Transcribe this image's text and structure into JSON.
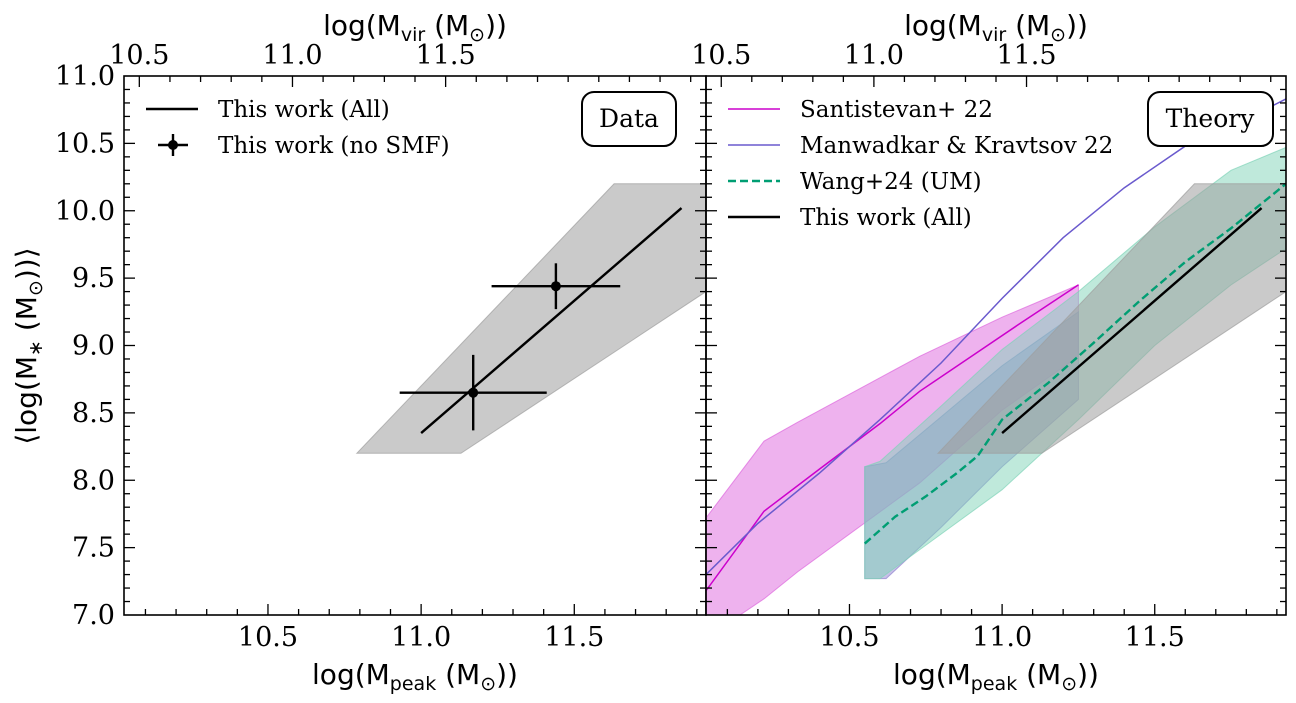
{
  "colors": {
    "black": "#000000",
    "gray_band": "#9e9e9e",
    "santistevan": "#cc00cc",
    "santistevan_band": "#dd66dd",
    "manwadkar": "#6a5acd",
    "manwadkar_band": "#8f82cf",
    "wang": "#009e73",
    "wang_band": "#7fd3b8"
  },
  "chart_data": [
    {
      "id": "left",
      "type": "line",
      "panel_label": "Data",
      "xlabel": "log(M_peak (M_sun))",
      "ylabel": "⟨log(M_* (M_sun))⟩",
      "top_xlabel": "log(M_vir (M_sun))",
      "xlim": [
        10.03,
        11.93
      ],
      "ylim": [
        7.0,
        11.0
      ],
      "x_ticks": [
        "10.5",
        "11.0",
        "11.5"
      ],
      "top_ticks": [
        "10.5",
        "11.0",
        "11.5"
      ],
      "y_ticks": [
        "7.0",
        "7.5",
        "8.0",
        "8.5",
        "9.0",
        "9.5",
        "10.0",
        "10.5",
        "11.0"
      ],
      "bands": [
        {
          "name": "This work (All) range",
          "color_key": "gray_band",
          "upper": [
            [
              10.79,
              8.2
            ],
            [
              11.63,
              10.2
            ],
            [
              11.93,
              10.2
            ]
          ],
          "lower": [
            [
              11.13,
              8.2
            ],
            [
              11.93,
              9.4
            ]
          ]
        }
      ],
      "series": [
        {
          "name": "This work (All)",
          "style": "solid",
          "color_key": "black",
          "points": [
            [
              11.0,
              8.35
            ],
            [
              11.85,
              10.02
            ]
          ]
        }
      ],
      "errorbars": [
        {
          "name": "This work (no SMF)",
          "x": 11.17,
          "y": 8.65,
          "xerr": [
            0.24,
            0.24
          ],
          "yerr": [
            0.28,
            0.28
          ]
        },
        {
          "name": "This work (no SMF)",
          "x": 11.44,
          "y": 9.44,
          "xerr": [
            0.21,
            0.21
          ],
          "yerr": [
            0.17,
            0.17
          ]
        }
      ],
      "legend": [
        {
          "label": "This work (All)",
          "kind": "line",
          "color_key": "black"
        },
        {
          "label": "This work (no SMF)",
          "kind": "errorbar",
          "color_key": "black"
        }
      ],
      "legend_position": "top-left"
    },
    {
      "id": "right",
      "type": "line",
      "panel_label": "Theory",
      "xlabel": "log(M_peak (M_sun))",
      "top_xlabel": "log(M_vir (M_sun))",
      "xlim": [
        10.03,
        11.93
      ],
      "ylim": [
        7.0,
        11.0
      ],
      "x_ticks": [
        "10.5",
        "11.0",
        "11.5"
      ],
      "top_ticks": [
        "10.5",
        "11.0",
        "11.5"
      ],
      "bands": [
        {
          "name": "Santistevan+ 22 range",
          "color_key": "santistevan_band",
          "upper": [
            [
              10.03,
              7.72
            ],
            [
              10.22,
              8.29
            ],
            [
              10.33,
              8.43
            ],
            [
              10.73,
              8.92
            ],
            [
              11.0,
              9.21
            ],
            [
              11.25,
              9.45
            ]
          ],
          "lower": [
            [
              10.03,
              6.83
            ],
            [
              10.22,
              7.12
            ],
            [
              10.33,
              7.32
            ],
            [
              10.73,
              7.98
            ],
            [
              11.0,
              8.52
            ],
            [
              11.25,
              8.92
            ]
          ]
        },
        {
          "name": "Manwadkar & Kravtsov 22 range",
          "color_key": "manwadkar_band",
          "upper": [
            [
              10.55,
              8.1
            ],
            [
              10.62,
              8.13
            ],
            [
              10.8,
              8.47
            ],
            [
              11.0,
              8.85
            ],
            [
              11.25,
              9.25
            ]
          ],
          "lower": [
            [
              10.55,
              7.27
            ],
            [
              10.62,
              7.27
            ],
            [
              10.8,
              7.65
            ],
            [
              11.0,
              8.1
            ],
            [
              11.25,
              8.6
            ]
          ]
        },
        {
          "name": "Wang+24 (UM) range",
          "color_key": "wang_band",
          "upper": [
            [
              10.55,
              8.1
            ],
            [
              10.6,
              8.14
            ],
            [
              10.8,
              8.55
            ],
            [
              11.0,
              8.97
            ],
            [
              11.25,
              9.4
            ],
            [
              11.5,
              9.88
            ],
            [
              11.75,
              10.3
            ],
            [
              11.93,
              10.47
            ]
          ],
          "lower": [
            [
              10.55,
              7.27
            ],
            [
              10.6,
              7.27
            ],
            [
              10.8,
              7.6
            ],
            [
              11.0,
              7.93
            ],
            [
              11.25,
              8.45
            ],
            [
              11.5,
              9.0
            ],
            [
              11.75,
              9.45
            ],
            [
              11.93,
              9.72
            ]
          ]
        },
        {
          "name": "This work (All) range",
          "color_key": "gray_band",
          "upper": [
            [
              10.79,
              8.2
            ],
            [
              11.63,
              10.2
            ],
            [
              11.93,
              10.2
            ]
          ],
          "lower": [
            [
              11.13,
              8.2
            ],
            [
              11.93,
              9.4
            ]
          ]
        }
      ],
      "series": [
        {
          "name": "Santistevan+ 22",
          "style": "solid-thin",
          "color_key": "santistevan",
          "points": [
            [
              10.03,
              7.18
            ],
            [
              10.22,
              7.77
            ],
            [
              10.4,
              8.08
            ],
            [
              10.6,
              8.42
            ],
            [
              10.73,
              8.66
            ],
            [
              10.9,
              8.92
            ],
            [
              11.05,
              9.15
            ],
            [
              11.25,
              9.45
            ]
          ]
        },
        {
          "name": "Manwadkar & Kravtsov 22",
          "style": "solid-thin",
          "color_key": "manwadkar",
          "points": [
            [
              10.03,
              7.3
            ],
            [
              10.2,
              7.68
            ],
            [
              10.4,
              8.05
            ],
            [
              10.6,
              8.45
            ],
            [
              10.8,
              8.87
            ],
            [
              11.0,
              9.35
            ],
            [
              11.2,
              9.8
            ],
            [
              11.4,
              10.17
            ],
            [
              11.6,
              10.48
            ],
            [
              11.8,
              10.68
            ],
            [
              11.93,
              10.83
            ]
          ]
        },
        {
          "name": "Wang+24 (UM)",
          "style": "dashed",
          "color_key": "wang",
          "points": [
            [
              10.55,
              7.53
            ],
            [
              10.65,
              7.73
            ],
            [
              10.75,
              7.88
            ],
            [
              10.85,
              8.05
            ],
            [
              10.92,
              8.18
            ],
            [
              11.0,
              8.45
            ],
            [
              11.15,
              8.72
            ],
            [
              11.3,
              9.02
            ],
            [
              11.45,
              9.33
            ],
            [
              11.6,
              9.62
            ],
            [
              11.75,
              9.87
            ],
            [
              11.93,
              10.2
            ]
          ]
        },
        {
          "name": "This work (All)",
          "style": "solid",
          "color_key": "black",
          "points": [
            [
              11.0,
              8.35
            ],
            [
              11.85,
              10.02
            ]
          ]
        }
      ],
      "legend": [
        {
          "label": "Santistevan+ 22",
          "kind": "line-thin",
          "color_key": "santistevan"
        },
        {
          "label": "Manwadkar & Kravtsov 22",
          "kind": "line-thin",
          "color_key": "manwadkar"
        },
        {
          "label": "Wang+24 (UM)",
          "kind": "dashed",
          "color_key": "wang"
        },
        {
          "label": "This work (All)",
          "kind": "line",
          "color_key": "black"
        }
      ],
      "legend_position": "top-left"
    }
  ],
  "axis_text": {
    "log": "log(M",
    "peak": "peak",
    "vir": "vir",
    "unit_open": " (M",
    "sun": "⊙",
    "unit_close": "))",
    "ylabel_open": "⟨log(M",
    "ylabel_star": "∗",
    "ylabel_mid": "  (M",
    "ylabel_close": "))⟩"
  }
}
